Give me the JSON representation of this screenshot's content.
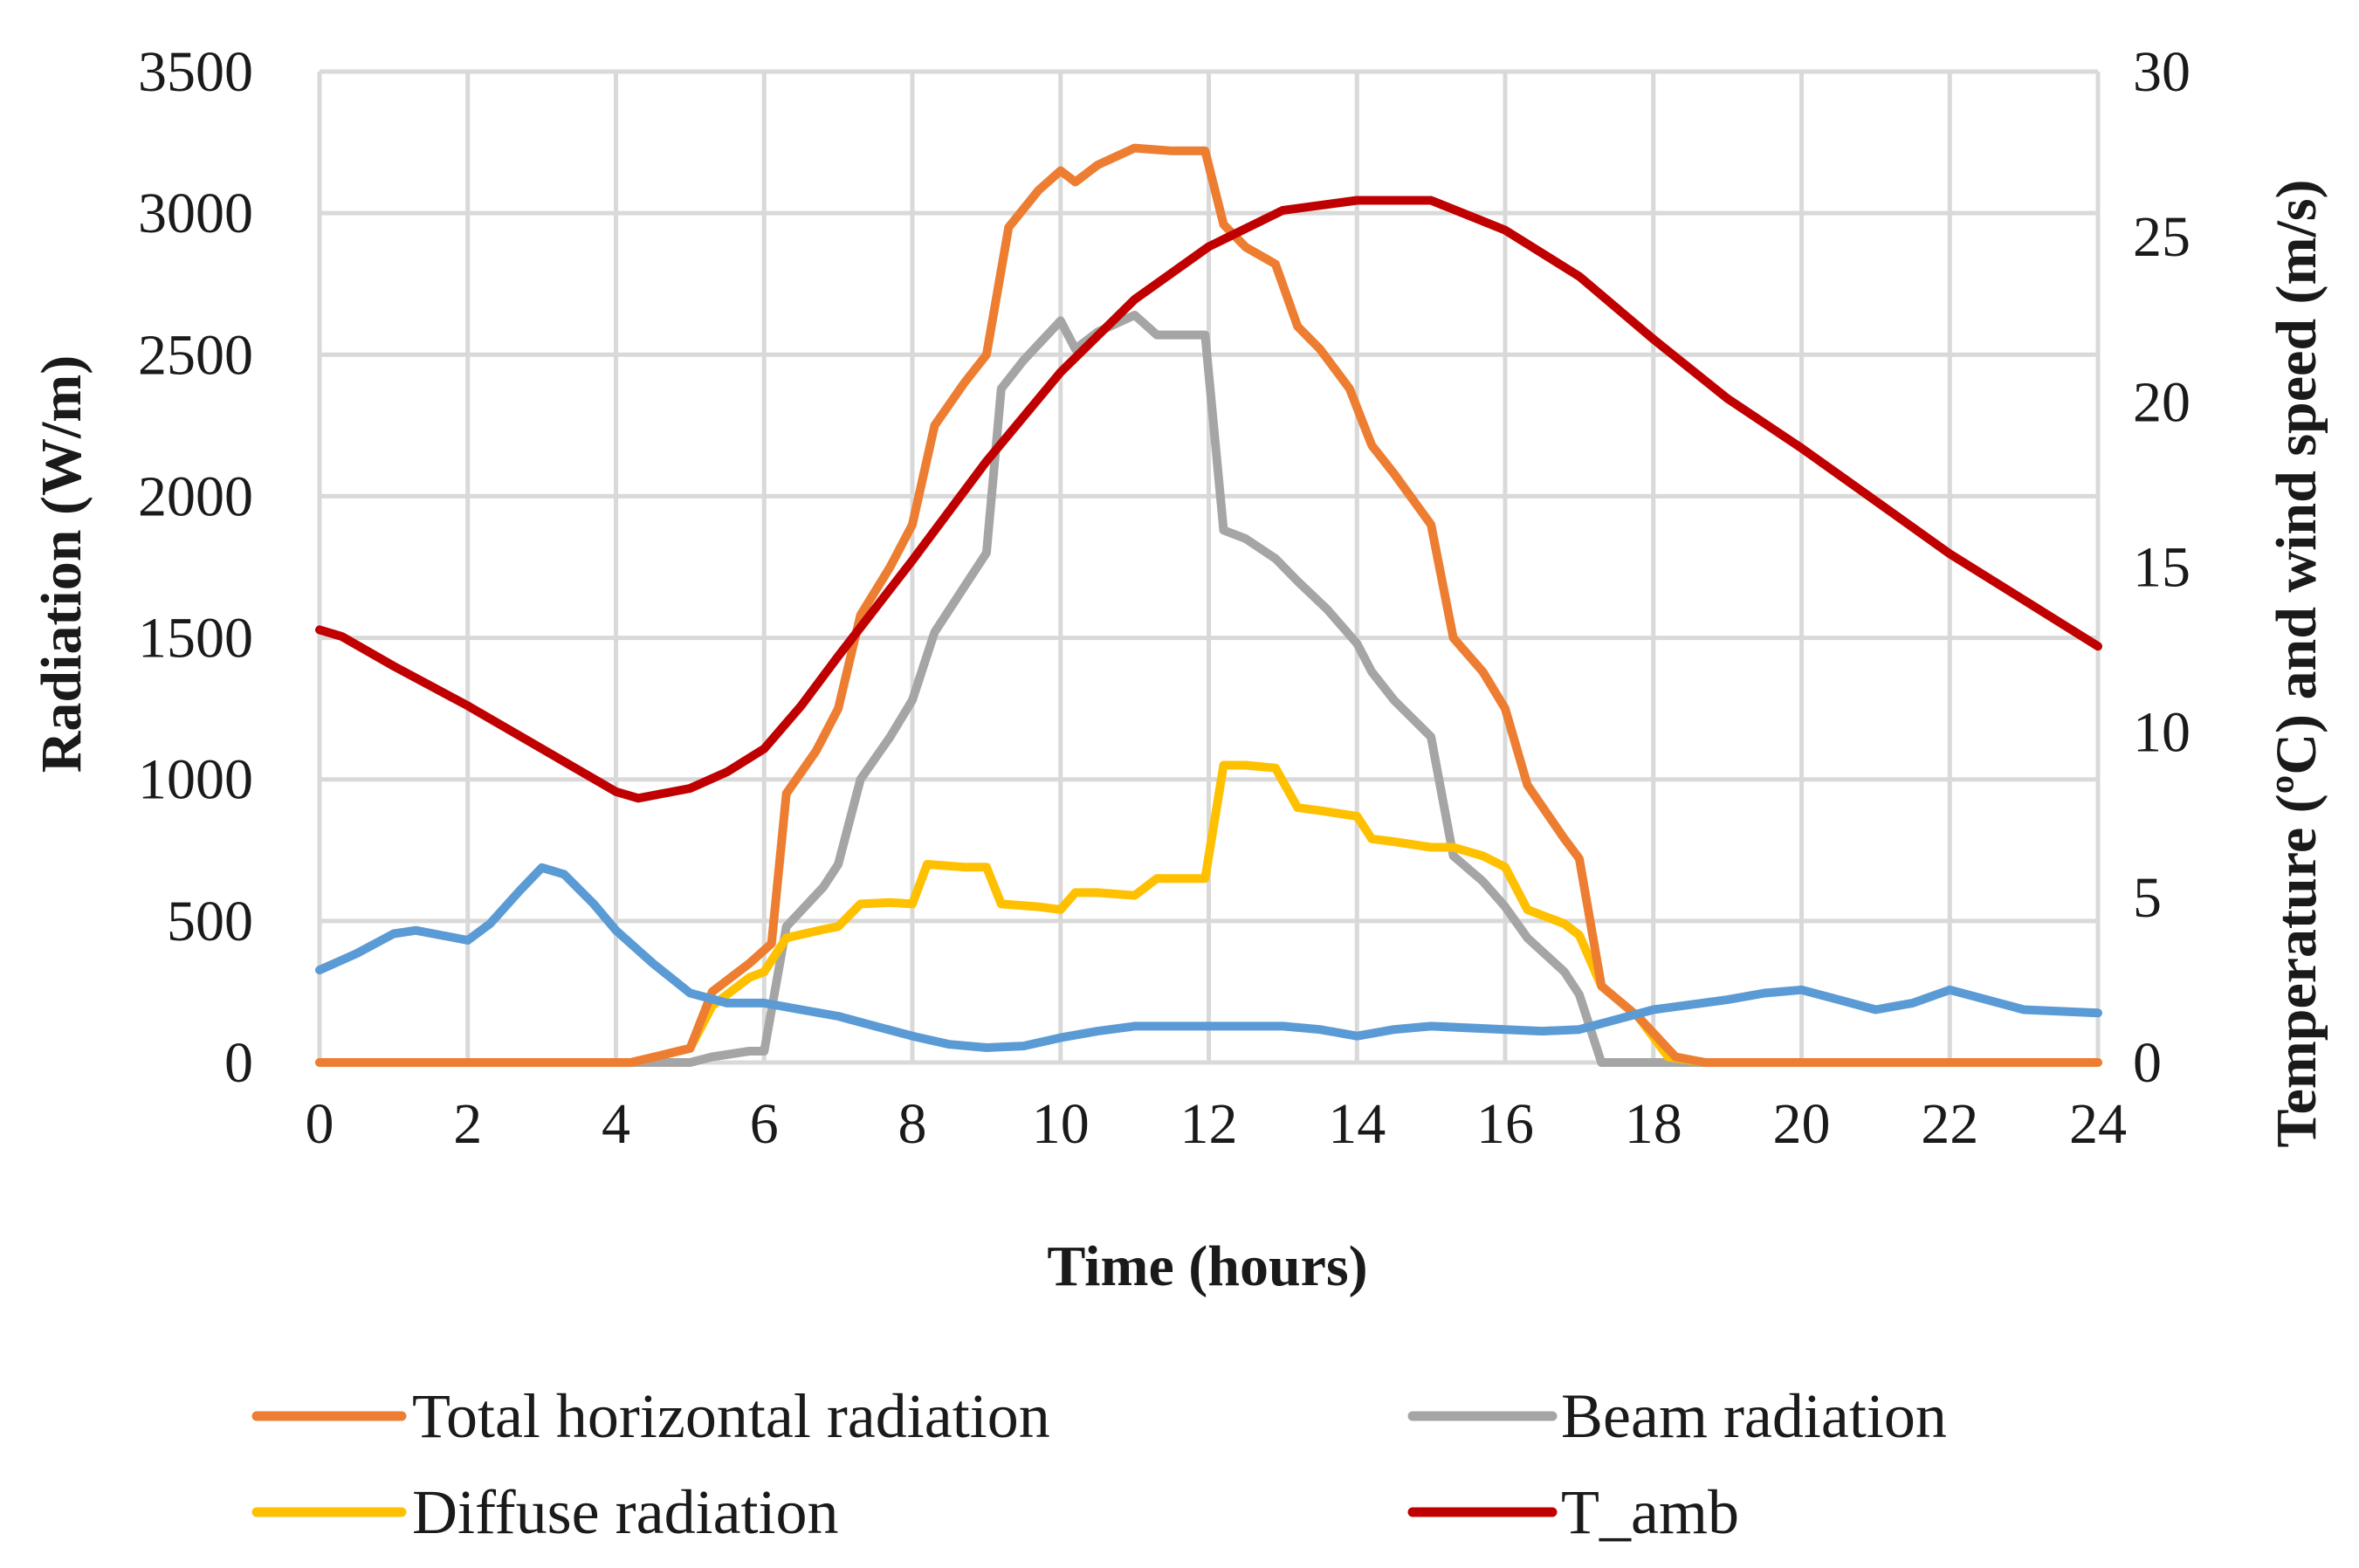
{
  "chart_data": {
    "type": "line",
    "xlabel": "Time (hours)",
    "ylabel_left": "Radiation (W/m)",
    "ylabel_right": "Temperature (ºC) and wind speed (m/s)",
    "xlim": [
      0,
      24
    ],
    "ylim_left": [
      0,
      3500
    ],
    "ylim_right": [
      0,
      30
    ],
    "x_ticks": [
      0,
      2,
      4,
      6,
      8,
      10,
      12,
      14,
      16,
      18,
      20,
      22,
      24
    ],
    "y_left_ticks": [
      0,
      500,
      1000,
      1500,
      2000,
      2500,
      3000,
      3500
    ],
    "y_right_ticks": [
      0,
      5,
      10,
      15,
      20,
      25,
      30
    ],
    "grid": true,
    "legend_position": "bottom",
    "series": [
      {
        "name": "Total horizontal radiation",
        "axis": "left",
        "color": "#ED7D31",
        "points": [
          [
            0,
            0
          ],
          [
            4.2,
            0
          ],
          [
            5,
            50
          ],
          [
            5.3,
            250
          ],
          [
            5.8,
            350
          ],
          [
            6.1,
            420
          ],
          [
            6.3,
            950
          ],
          [
            6.7,
            1100
          ],
          [
            7,
            1250
          ],
          [
            7.3,
            1580
          ],
          [
            7.7,
            1750
          ],
          [
            8,
            1900
          ],
          [
            8.3,
            2250
          ],
          [
            8.7,
            2400
          ],
          [
            9,
            2500
          ],
          [
            9.3,
            2950
          ],
          [
            9.7,
            3080
          ],
          [
            10,
            3150
          ],
          [
            10.2,
            3110
          ],
          [
            10.5,
            3170
          ],
          [
            11,
            3230
          ],
          [
            11.5,
            3220
          ],
          [
            11.95,
            3220
          ],
          [
            12.2,
            2960
          ],
          [
            12.5,
            2880
          ],
          [
            12.9,
            2820
          ],
          [
            13.2,
            2600
          ],
          [
            13.5,
            2520
          ],
          [
            13.9,
            2380
          ],
          [
            14.2,
            2180
          ],
          [
            14.5,
            2080
          ],
          [
            15,
            1900
          ],
          [
            15.3,
            1500
          ],
          [
            15.7,
            1380
          ],
          [
            16,
            1250
          ],
          [
            16.3,
            980
          ],
          [
            16.8,
            790
          ],
          [
            17,
            720
          ],
          [
            17.3,
            270
          ],
          [
            17.8,
            160
          ],
          [
            18.3,
            20
          ],
          [
            18.7,
            0
          ],
          [
            24,
            0
          ]
        ]
      },
      {
        "name": "Beam radiation",
        "axis": "left",
        "color": "#A5A5A5",
        "points": [
          [
            0,
            0
          ],
          [
            5,
            0
          ],
          [
            5.3,
            20
          ],
          [
            5.8,
            40
          ],
          [
            6,
            40
          ],
          [
            6.3,
            480
          ],
          [
            6.8,
            620
          ],
          [
            7,
            700
          ],
          [
            7.3,
            1000
          ],
          [
            7.7,
            1150
          ],
          [
            8,
            1280
          ],
          [
            8.3,
            1520
          ],
          [
            8.7,
            1680
          ],
          [
            9,
            1800
          ],
          [
            9.2,
            2380
          ],
          [
            9.5,
            2480
          ],
          [
            10,
            2620
          ],
          [
            10.2,
            2520
          ],
          [
            10.5,
            2580
          ],
          [
            11,
            2640
          ],
          [
            11.3,
            2570
          ],
          [
            11.95,
            2570
          ],
          [
            12.2,
            1880
          ],
          [
            12.5,
            1850
          ],
          [
            12.9,
            1780
          ],
          [
            13.2,
            1700
          ],
          [
            13.6,
            1600
          ],
          [
            14,
            1480
          ],
          [
            14.2,
            1380
          ],
          [
            14.5,
            1280
          ],
          [
            15,
            1150
          ],
          [
            15.3,
            730
          ],
          [
            15.7,
            640
          ],
          [
            16,
            550
          ],
          [
            16.3,
            440
          ],
          [
            16.8,
            320
          ],
          [
            17,
            240
          ],
          [
            17.3,
            0
          ],
          [
            24,
            0
          ]
        ]
      },
      {
        "name": "Diffuse radiation",
        "axis": "left",
        "color": "#FFC000",
        "points": [
          [
            0,
            0
          ],
          [
            4.2,
            0
          ],
          [
            5,
            50
          ],
          [
            5.3,
            200
          ],
          [
            5.8,
            300
          ],
          [
            6,
            320
          ],
          [
            6.3,
            440
          ],
          [
            6.8,
            470
          ],
          [
            7,
            480
          ],
          [
            7.3,
            560
          ],
          [
            7.7,
            565
          ],
          [
            8,
            560
          ],
          [
            8.2,
            700
          ],
          [
            8.7,
            690
          ],
          [
            9,
            690
          ],
          [
            9.2,
            560
          ],
          [
            9.7,
            550
          ],
          [
            10,
            540
          ],
          [
            10.2,
            600
          ],
          [
            10.5,
            600
          ],
          [
            11,
            590
          ],
          [
            11.3,
            650
          ],
          [
            11.95,
            650
          ],
          [
            12.2,
            1050
          ],
          [
            12.5,
            1050
          ],
          [
            12.9,
            1040
          ],
          [
            13.2,
            900
          ],
          [
            13.5,
            890
          ],
          [
            14,
            870
          ],
          [
            14.2,
            790
          ],
          [
            14.5,
            780
          ],
          [
            15,
            760
          ],
          [
            15.3,
            760
          ],
          [
            15.7,
            730
          ],
          [
            16,
            690
          ],
          [
            16.3,
            540
          ],
          [
            16.8,
            490
          ],
          [
            17,
            450
          ],
          [
            17.3,
            270
          ],
          [
            17.8,
            160
          ],
          [
            18.2,
            20
          ],
          [
            18.7,
            0
          ],
          [
            24,
            0
          ]
        ]
      },
      {
        "name": "T_amb",
        "axis": "right",
        "color": "#C00000",
        "points": [
          [
            0,
            13.1
          ],
          [
            0.3,
            12.9
          ],
          [
            1,
            12.0
          ],
          [
            2,
            10.8
          ],
          [
            3,
            9.5
          ],
          [
            4,
            8.2
          ],
          [
            4.3,
            8.0
          ],
          [
            5,
            8.3
          ],
          [
            5.5,
            8.8
          ],
          [
            6,
            9.5
          ],
          [
            6.5,
            10.8
          ],
          [
            7,
            12.3
          ],
          [
            8,
            15.2
          ],
          [
            9,
            18.2
          ],
          [
            10,
            20.9
          ],
          [
            11,
            23.1
          ],
          [
            12,
            24.7
          ],
          [
            13,
            25.8
          ],
          [
            14,
            26.1
          ],
          [
            15,
            26.1
          ],
          [
            16,
            25.2
          ],
          [
            17,
            23.8
          ],
          [
            18,
            21.9
          ],
          [
            19,
            20.1
          ],
          [
            20,
            18.6
          ],
          [
            21,
            17.0
          ],
          [
            22,
            15.4
          ],
          [
            23,
            14.0
          ],
          [
            24,
            12.6
          ]
        ]
      },
      {
        "axis": "right",
        "color": "#5B9BD5",
        "points": [
          [
            0,
            2.8
          ],
          [
            0.5,
            3.3
          ],
          [
            1,
            3.9
          ],
          [
            1.3,
            4.0
          ],
          [
            2,
            3.7
          ],
          [
            2.3,
            4.2
          ],
          [
            2.7,
            5.2
          ],
          [
            3,
            5.9
          ],
          [
            3.3,
            5.7
          ],
          [
            3.7,
            4.8
          ],
          [
            4,
            4.0
          ],
          [
            4.5,
            3.0
          ],
          [
            5,
            2.1
          ],
          [
            5.5,
            1.8
          ],
          [
            6,
            1.8
          ],
          [
            6.5,
            1.6
          ],
          [
            7,
            1.4
          ],
          [
            7.5,
            1.1
          ],
          [
            8,
            0.8
          ],
          [
            8.5,
            0.55
          ],
          [
            9,
            0.45
          ],
          [
            9.5,
            0.5
          ],
          [
            10,
            0.75
          ],
          [
            10.5,
            0.95
          ],
          [
            11,
            1.1
          ],
          [
            12,
            1.1
          ],
          [
            13,
            1.1
          ],
          [
            13.5,
            1.0
          ],
          [
            14,
            0.8
          ],
          [
            14.5,
            1.0
          ],
          [
            15,
            1.1
          ],
          [
            16,
            1.0
          ],
          [
            16.5,
            0.95
          ],
          [
            17,
            1.0
          ],
          [
            17.5,
            1.3
          ],
          [
            18,
            1.6
          ],
          [
            19,
            1.9
          ],
          [
            19.5,
            2.1
          ],
          [
            20,
            2.2
          ],
          [
            20.5,
            1.9
          ],
          [
            21,
            1.6
          ],
          [
            21.5,
            1.8
          ],
          [
            22,
            2.2
          ],
          [
            22.5,
            1.9
          ],
          [
            23,
            1.6
          ],
          [
            24,
            1.5
          ]
        ]
      }
    ]
  }
}
